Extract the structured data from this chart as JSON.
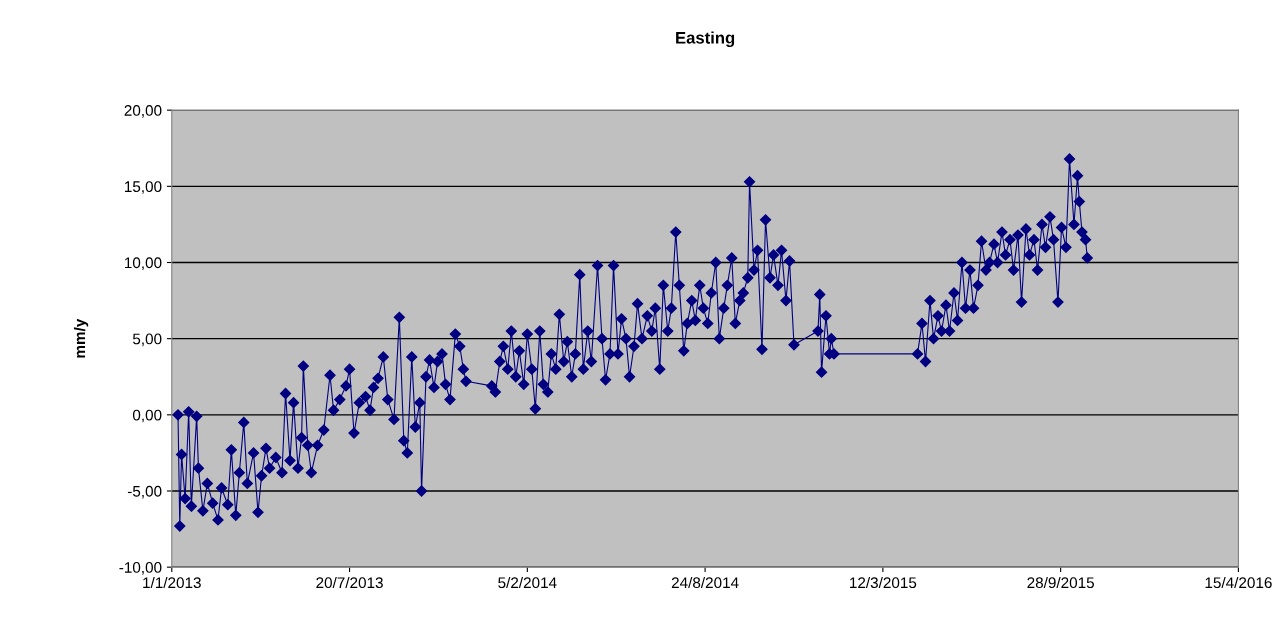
{
  "chart_data": {
    "type": "line",
    "title": "Easting",
    "ylabel": "mm/y",
    "x": [
      "2013-01-08",
      "2013-01-10",
      "2013-01-12",
      "2013-01-16",
      "2013-01-20",
      "2013-01-23",
      "2013-01-29",
      "2013-01-31",
      "2013-02-05",
      "2013-02-10",
      "2013-02-16",
      "2013-02-22",
      "2013-02-26",
      "2013-03-05",
      "2013-03-09",
      "2013-03-14",
      "2013-03-18",
      "2013-03-23",
      "2013-03-27",
      "2013-04-03",
      "2013-04-08",
      "2013-04-12",
      "2013-04-17",
      "2013-04-21",
      "2013-04-28",
      "2013-05-05",
      "2013-05-09",
      "2013-05-14",
      "2013-05-18",
      "2013-05-23",
      "2013-05-27",
      "2013-05-29",
      "2013-06-03",
      "2013-06-07",
      "2013-06-14",
      "2013-06-21",
      "2013-06-28",
      "2013-07-02",
      "2013-07-09",
      "2013-07-16",
      "2013-07-20",
      "2013-07-25",
      "2013-07-31",
      "2013-08-07",
      "2013-08-12",
      "2013-08-16",
      "2013-08-21",
      "2013-08-27",
      "2013-09-01",
      "2013-09-08",
      "2013-09-14",
      "2013-09-19",
      "2013-09-23",
      "2013-09-28",
      "2013-10-02",
      "2013-10-07",
      "2013-10-09",
      "2013-10-14",
      "2013-10-18",
      "2013-10-23",
      "2013-10-27",
      "2013-11-01",
      "2013-11-05",
      "2013-11-10",
      "2013-11-16",
      "2013-11-21",
      "2013-11-25",
      "2013-11-28",
      "2013-12-27",
      "2013-12-31",
      "2014-01-05",
      "2014-01-09",
      "2014-01-14",
      "2014-01-18",
      "2014-01-23",
      "2014-01-27",
      "2014-02-01",
      "2014-02-05",
      "2014-02-10",
      "2014-02-14",
      "2014-02-19",
      "2014-02-23",
      "2014-02-28",
      "2014-03-04",
      "2014-03-09",
      "2014-03-13",
      "2014-03-18",
      "2014-03-22",
      "2014-03-27",
      "2014-03-31",
      "2014-04-05",
      "2014-04-09",
      "2014-04-14",
      "2014-04-18",
      "2014-04-25",
      "2014-04-30",
      "2014-05-04",
      "2014-05-09",
      "2014-05-13",
      "2014-05-18",
      "2014-05-22",
      "2014-05-27",
      "2014-05-31",
      "2014-06-05",
      "2014-06-09",
      "2014-06-14",
      "2014-06-20",
      "2014-06-25",
      "2014-06-29",
      "2014-07-04",
      "2014-07-08",
      "2014-07-13",
      "2014-07-17",
      "2014-07-22",
      "2014-07-26",
      "2014-07-31",
      "2014-08-04",
      "2014-08-09",
      "2014-08-13",
      "2014-08-18",
      "2014-08-22",
      "2014-08-27",
      "2014-08-31",
      "2014-09-05",
      "2014-09-09",
      "2014-09-14",
      "2014-09-18",
      "2014-09-23",
      "2014-09-27",
      "2014-10-02",
      "2014-10-06",
      "2014-10-11",
      "2014-10-13",
      "2014-10-18",
      "2014-10-22",
      "2014-10-27",
      "2014-10-31",
      "2014-11-05",
      "2014-11-09",
      "2014-11-14",
      "2014-11-18",
      "2014-11-23",
      "2014-11-27",
      "2014-12-02",
      "2014-12-29",
      "2014-12-31",
      "2015-01-02",
      "2015-01-07",
      "2015-01-11",
      "2015-01-13",
      "2015-01-16",
      "2015-04-20",
      "2015-04-25",
      "2015-04-29",
      "2015-05-04",
      "2015-05-08",
      "2015-05-13",
      "2015-05-17",
      "2015-05-22",
      "2015-05-26",
      "2015-05-31",
      "2015-06-04",
      "2015-06-09",
      "2015-06-13",
      "2015-06-18",
      "2015-06-22",
      "2015-06-27",
      "2015-07-01",
      "2015-07-06",
      "2015-07-10",
      "2015-07-15",
      "2015-07-19",
      "2015-07-24",
      "2015-07-28",
      "2015-08-02",
      "2015-08-06",
      "2015-08-11",
      "2015-08-15",
      "2015-08-20",
      "2015-08-24",
      "2015-08-29",
      "2015-09-02",
      "2015-09-07",
      "2015-09-11",
      "2015-09-16",
      "2015-09-20",
      "2015-09-25",
      "2015-09-29",
      "2015-10-04",
      "2015-10-08",
      "2015-10-13",
      "2015-10-17",
      "2015-10-19",
      "2015-10-22",
      "2015-10-26",
      "2015-10-28"
    ],
    "series": [
      {
        "color": "#000080",
        "values": [
          0.0,
          -7.3,
          -2.6,
          -5.5,
          0.2,
          -6.0,
          -0.1,
          -3.5,
          -6.3,
          -4.5,
          -5.8,
          -6.9,
          -4.8,
          -5.9,
          -2.3,
          -6.6,
          -3.8,
          -0.5,
          -4.5,
          -2.5,
          -6.4,
          -4.0,
          -2.2,
          -3.5,
          -2.8,
          -3.8,
          1.4,
          -3.0,
          0.8,
          -3.5,
          -1.5,
          3.2,
          -2.0,
          -3.8,
          -2.0,
          -1.0,
          2.6,
          0.3,
          1.0,
          1.9,
          3.0,
          -1.2,
          0.8,
          1.2,
          0.3,
          1.8,
          2.4,
          3.8,
          1.0,
          -0.3,
          6.4,
          -1.7,
          -2.5,
          3.8,
          -0.8,
          0.8,
          -5.0,
          2.5,
          3.6,
          1.8,
          3.5,
          4.0,
          2.0,
          1.0,
          5.3,
          4.5,
          3.0,
          2.2,
          1.9,
          1.5,
          3.5,
          4.5,
          3.0,
          5.5,
          2.5,
          4.2,
          2.0,
          5.3,
          3.0,
          0.4,
          5.5,
          2.0,
          1.5,
          4.0,
          3.0,
          6.6,
          3.5,
          4.8,
          2.5,
          4.0,
          9.2,
          3.0,
          5.5,
          3.5,
          9.8,
          5.0,
          2.3,
          4.0,
          9.8,
          4.0,
          6.3,
          5.0,
          2.5,
          4.5,
          7.3,
          5.0,
          6.5,
          5.5,
          7.0,
          3.0,
          8.5,
          5.5,
          7.0,
          12.0,
          8.5,
          4.2,
          6.0,
          7.5,
          6.2,
          8.5,
          7.0,
          6.0,
          8.0,
          10.0,
          5.0,
          7.0,
          8.5,
          10.3,
          6.0,
          7.5,
          8.0,
          9.0,
          15.3,
          9.5,
          10.8,
          4.3,
          12.8,
          9.0,
          10.5,
          8.5,
          10.8,
          7.5,
          10.1,
          4.6,
          5.5,
          7.9,
          2.8,
          6.5,
          4.0,
          5.0,
          4.0,
          4.0,
          6.0,
          3.5,
          7.5,
          5.0,
          6.5,
          5.5,
          7.2,
          5.5,
          8.0,
          6.2,
          10.0,
          7.0,
          9.5,
          7.0,
          8.5,
          11.4,
          9.5,
          10.0,
          11.2,
          10.0,
          12.0,
          10.5,
          11.5,
          9.5,
          11.8,
          7.4,
          12.2,
          10.5,
          11.5,
          9.5,
          12.5,
          11.0,
          13.0,
          11.5,
          7.4,
          12.3,
          11.0,
          16.8,
          12.5,
          15.7,
          14.0,
          12.0,
          11.5,
          10.3
        ]
      }
    ],
    "xlim": [
      "2013-01-01",
      "2016-04-15"
    ],
    "xticks": [
      {
        "value": "2013-01-01",
        "label": "1/1/2013"
      },
      {
        "value": "2013-07-20",
        "label": "20/7/2013"
      },
      {
        "value": "2014-02-05",
        "label": "5/2/2014"
      },
      {
        "value": "2014-08-24",
        "label": "24/8/2014"
      },
      {
        "value": "2015-03-12",
        "label": "12/3/2015"
      },
      {
        "value": "2015-09-28",
        "label": "28/9/2015"
      },
      {
        "value": "2016-04-15",
        "label": "15/4/2016"
      }
    ],
    "ylim": [
      -10,
      20
    ],
    "yticks": [
      {
        "value": -10,
        "label": "-10,00"
      },
      {
        "value": -5,
        "label": "-5,00"
      },
      {
        "value": 0,
        "label": "0,00"
      },
      {
        "value": 5,
        "label": "5,00"
      },
      {
        "value": 10,
        "label": "10,00"
      },
      {
        "value": 15,
        "label": "15,00"
      },
      {
        "value": 20,
        "label": "20,00"
      }
    ],
    "grid": "y",
    "marker": "diamond",
    "line_style": "solid"
  }
}
